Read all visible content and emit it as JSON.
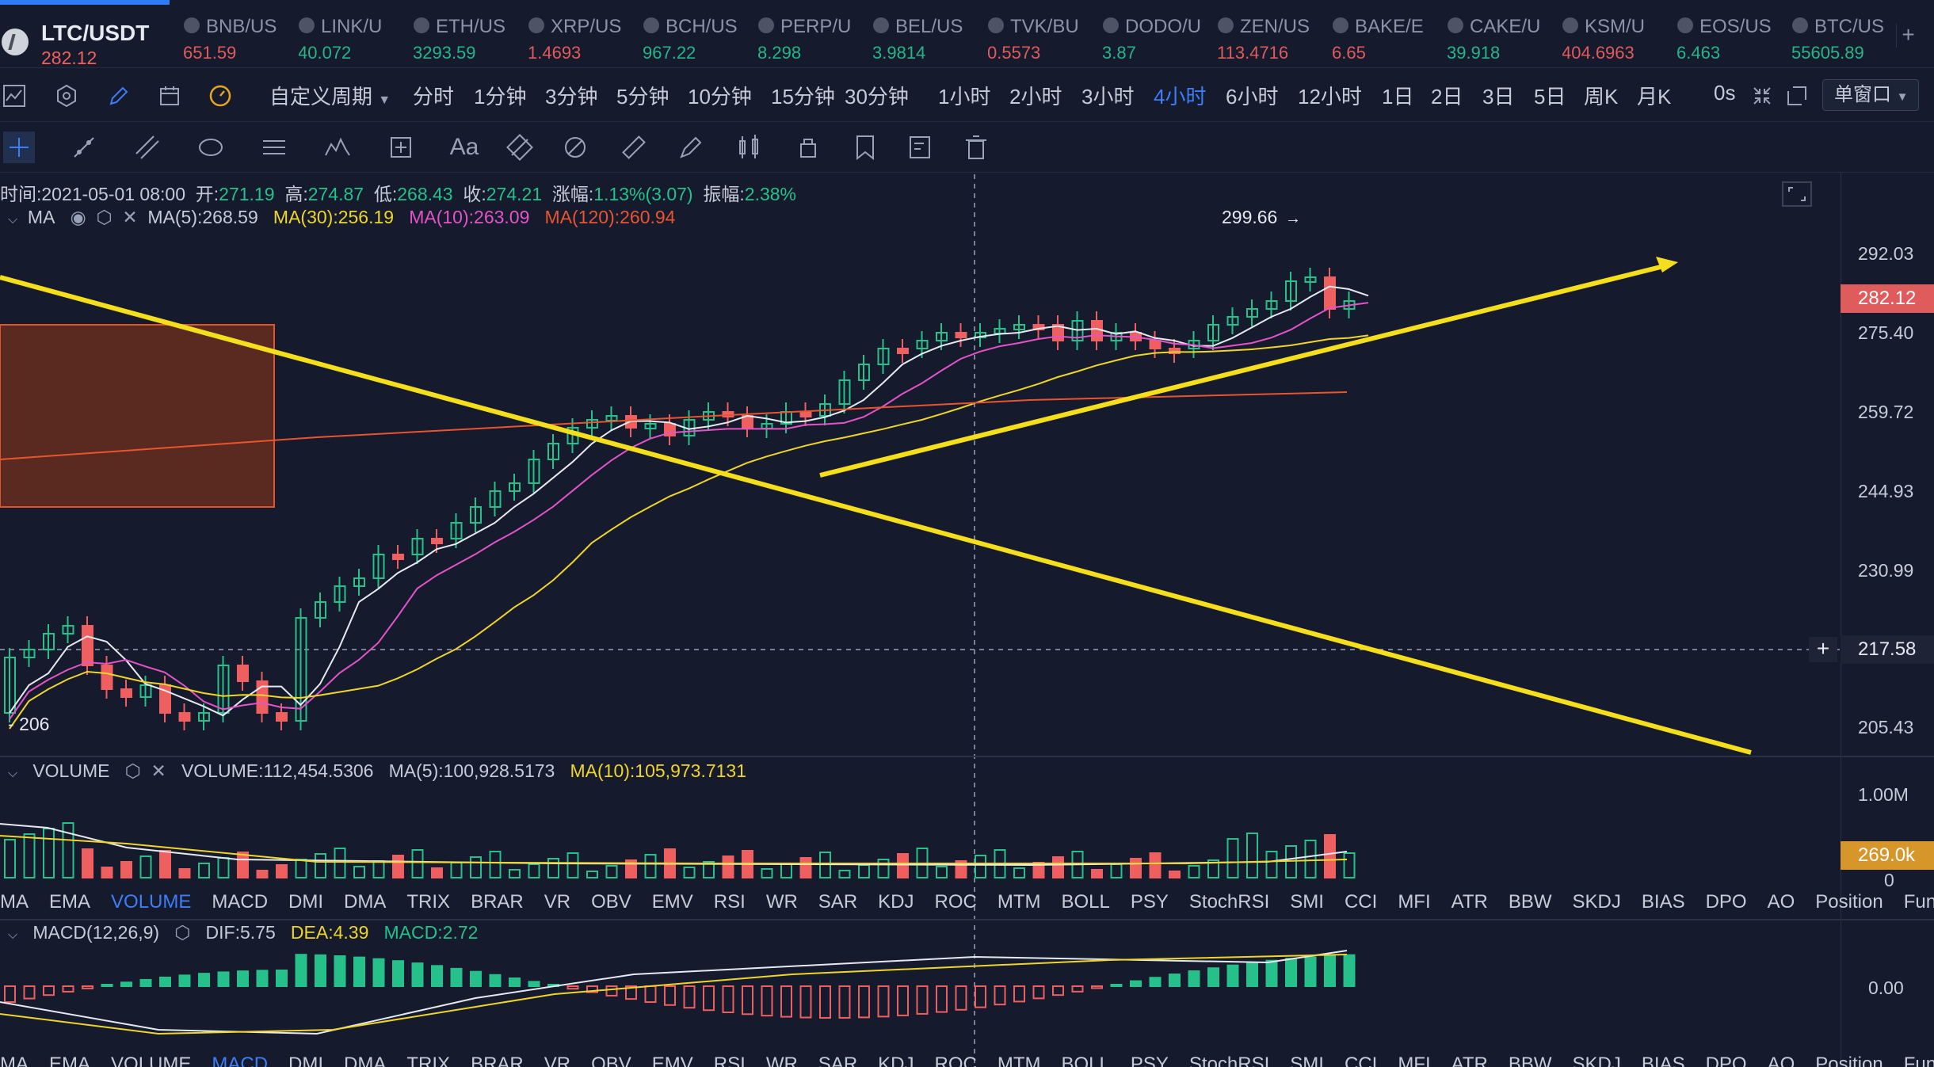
{
  "main_ticker": {
    "symbol": "LTC/USDT",
    "price": "282.12"
  },
  "tickers": [
    {
      "symbol": "BNB/US",
      "price": "651.59",
      "dir": "dn"
    },
    {
      "symbol": "LINK/U",
      "price": "40.072",
      "dir": "up"
    },
    {
      "symbol": "ETH/US",
      "price": "3293.59",
      "dir": "up"
    },
    {
      "symbol": "XRP/US",
      "price": "1.4693",
      "dir": "dn"
    },
    {
      "symbol": "BCH/US",
      "price": "967.22",
      "dir": "up"
    },
    {
      "symbol": "PERP/U",
      "price": "8.298",
      "dir": "up"
    },
    {
      "symbol": "BEL/US",
      "price": "3.9814",
      "dir": "up"
    },
    {
      "symbol": "TVK/BU",
      "price": "0.5573",
      "dir": "dn"
    },
    {
      "symbol": "DODO/U",
      "price": "3.87",
      "dir": "up"
    },
    {
      "symbol": "ZEN/US",
      "price": "113.4716",
      "dir": "dn"
    },
    {
      "symbol": "BAKE/E",
      "price": "6.65",
      "dir": "dn"
    },
    {
      "symbol": "CAKE/U",
      "price": "39.918",
      "dir": "up"
    },
    {
      "symbol": "KSM/U",
      "price": "404.6963",
      "dir": "dn"
    },
    {
      "symbol": "EOS/US",
      "price": "6.463",
      "dir": "up"
    },
    {
      "symbol": "BTC/US",
      "price": "55605.89",
      "dir": "up"
    }
  ],
  "periods": {
    "custom": "自定义周期",
    "items": [
      "分时",
      "1分钟",
      "3分钟",
      "5分钟",
      "10分钟",
      "15分钟",
      "30分钟",
      "1小时",
      "2小时",
      "3小时",
      "4小时",
      "6小时",
      "12小时",
      "1日",
      "2日",
      "3日",
      "5日",
      "周K",
      "月K"
    ],
    "active": "4小时",
    "countdown": "0s",
    "window_mode": "单窗口"
  },
  "drawing_tools": {
    "text_tool": "Aa"
  },
  "ohlc": {
    "time_label": "时间:",
    "time": "2021-05-01 08:00",
    "open_label": "开:",
    "open": "271.19",
    "high_label": "高:",
    "high": "274.87",
    "low_label": "低:",
    "low": "268.43",
    "close_label": "收:",
    "close": "274.21",
    "change_label": "涨幅:",
    "change": "1.13%(3.07)",
    "amp_label": "振幅:",
    "amp": "2.38%"
  },
  "ma_legend": {
    "name": "MA",
    "ma5": "MA(5):268.59",
    "ma30": "MA(30):256.19",
    "ma10": "MA(10):263.09",
    "ma120": "MA(120):260.94"
  },
  "price_axis": {
    "ticks": [
      "292.03",
      "275.40",
      "259.72",
      "244.93",
      "230.99",
      "217.58",
      "205.43"
    ],
    "last_price": "282.12",
    "crosshair_price": "217.58",
    "high_marker": "299.66",
    "low_marker": "206"
  },
  "volume_legend": {
    "name": "VOLUME",
    "value": "VOLUME:112,454.5306",
    "ma5": "MA(5):100,928.5173",
    "ma10": "MA(10):105,973.7131"
  },
  "volume_axis": {
    "ticks": [
      "1.00M",
      "0"
    ],
    "last": "269.0k"
  },
  "indicator_tabs": [
    "MA",
    "EMA",
    "VOLUME",
    "MACD",
    "DMI",
    "DMA",
    "TRIX",
    "BRAR",
    "VR",
    "OBV",
    "EMV",
    "RSI",
    "WR",
    "SAR",
    "KDJ",
    "ROC",
    "MTM",
    "BOLL",
    "PSY",
    "StochRSI",
    "SMI",
    "CCI",
    "MFI",
    "ATR",
    "BBW",
    "SKDJ",
    "BIAS",
    "DPO",
    "AO",
    "Position",
    "Fundflow"
  ],
  "macd_legend": {
    "name": "MACD(12,26,9)",
    "dif": "DIF:5.75",
    "dea": "DEA:4.39",
    "macd": "MACD:2.72"
  },
  "macd_axis": {
    "ticks": [
      "0.00"
    ]
  },
  "colors": {
    "up": "#26c08a",
    "down": "#ef5f5f",
    "accent": "#3d7ef8",
    "trendline": "#f5df1d",
    "zone": "#e0542a"
  }
}
